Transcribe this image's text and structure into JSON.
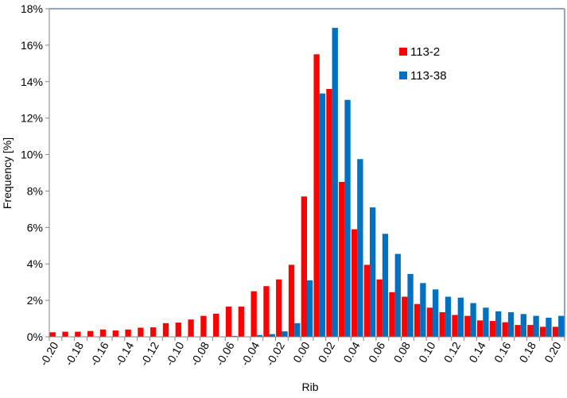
{
  "chart_data": {
    "type": "bar",
    "title": "",
    "xlabel": "Rib",
    "ylabel": "Frequency [%]",
    "ylim": [
      0,
      18
    ],
    "yticks": [
      "0%",
      "2%",
      "4%",
      "6%",
      "8%",
      "10%",
      "12%",
      "14%",
      "16%",
      "18%"
    ],
    "grid": false,
    "legend_position": "top-right",
    "categories": [
      -0.2,
      -0.19,
      -0.18,
      -0.17,
      -0.16,
      -0.15,
      -0.14,
      -0.13,
      -0.12,
      -0.11,
      -0.1,
      -0.09,
      -0.08,
      -0.07,
      -0.06,
      -0.05,
      -0.04,
      -0.03,
      -0.02,
      -0.01,
      0.0,
      0.01,
      0.02,
      0.03,
      0.04,
      0.05,
      0.06,
      0.07,
      0.08,
      0.09,
      0.1,
      0.11,
      0.12,
      0.13,
      0.14,
      0.15,
      0.16,
      0.17,
      0.18,
      0.19,
      0.2
    ],
    "xtick_labels": [
      "-0.20",
      "-0.18",
      "-0.16",
      "-0.14",
      "-0.12",
      "-0.10",
      "-0.08",
      "-0.06",
      "-0.04",
      "-0.02",
      "0.00",
      "0.02",
      "0.04",
      "0.06",
      "0.08",
      "0.10",
      "0.12",
      "0.14",
      "0.16",
      "0.18",
      "0.20"
    ],
    "series": [
      {
        "name": "113-2",
        "color": "#ff0000",
        "values": [
          0.25,
          0.28,
          0.28,
          0.32,
          0.4,
          0.35,
          0.4,
          0.5,
          0.52,
          0.75,
          0.78,
          0.95,
          1.15,
          1.27,
          1.66,
          1.66,
          2.5,
          2.78,
          3.15,
          3.95,
          7.7,
          15.5,
          13.6,
          8.5,
          5.9,
          3.95,
          3.15,
          2.45,
          2.2,
          1.8,
          1.6,
          1.35,
          1.2,
          1.15,
          0.9,
          0.87,
          0.8,
          0.65,
          0.65,
          0.55,
          0.55
        ]
      },
      {
        "name": "113-38",
        "color": "#0070c0",
        "values": [
          0,
          0,
          0,
          0,
          0,
          0,
          0,
          0,
          0,
          0,
          0,
          0,
          0,
          0,
          0.05,
          0.02,
          0.1,
          0.15,
          0.3,
          0.75,
          3.1,
          13.35,
          16.95,
          13.0,
          9.75,
          7.1,
          5.65,
          4.55,
          3.45,
          2.95,
          2.6,
          2.2,
          2.15,
          1.85,
          1.6,
          1.4,
          1.35,
          1.25,
          1.15,
          1.05,
          1.15
        ]
      }
    ]
  }
}
